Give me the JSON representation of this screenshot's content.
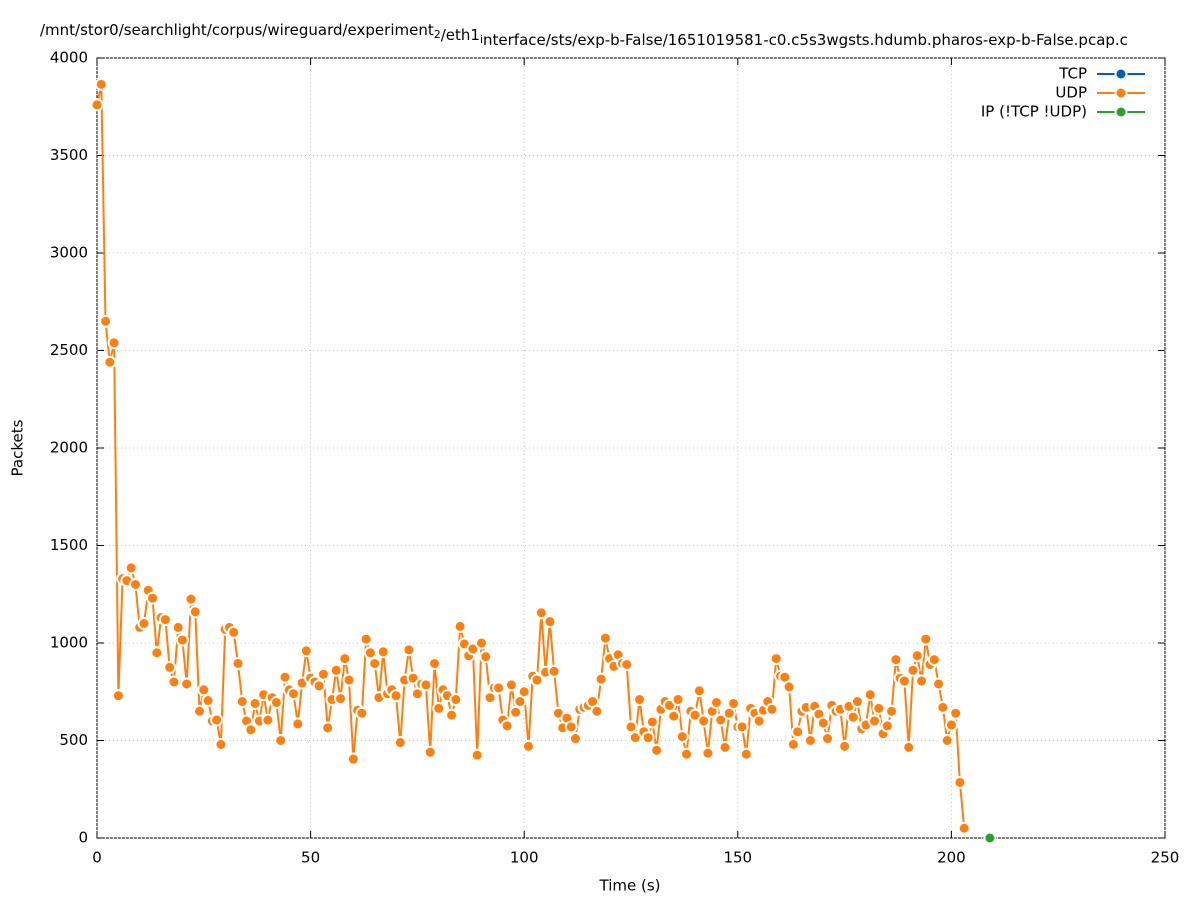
{
  "chart_data": {
    "type": "line",
    "title": "/mnt/stor0/searchlight/corpus/wireguard/experiment_2/eth1_interface/sts/exp-b-False/1651019581-c0.c5s3wgsts.hdumb.pharos-exp-b-False.pcap.c",
    "xlabel": "Time (s)",
    "ylabel": "Packets",
    "xlim": [
      0,
      250
    ],
    "xticks": [
      0,
      50,
      100,
      150,
      200,
      250
    ],
    "ylim": [
      0,
      4000
    ],
    "yticks": [
      0,
      500,
      1000,
      1500,
      2000,
      2500,
      3000,
      3500,
      4000
    ],
    "grid": true,
    "legend": "top-right",
    "series": [
      {
        "name": "TCP",
        "color": "#0060ad",
        "x": [],
        "values": []
      },
      {
        "name": "UDP",
        "color": "#ff7f0e",
        "x": [
          0,
          1,
          2,
          3,
          4,
          5,
          6,
          7,
          8,
          9,
          10,
          11,
          12,
          13,
          14,
          15,
          16,
          17,
          18,
          19,
          20,
          21,
          22,
          23,
          24,
          25,
          26,
          27,
          28,
          29,
          30,
          31,
          32,
          33,
          34,
          35,
          36,
          37,
          38,
          39,
          40,
          41,
          42,
          43,
          44,
          45,
          46,
          47,
          48,
          49,
          50,
          51,
          52,
          53,
          54,
          55,
          56,
          57,
          58,
          59,
          60,
          61,
          62,
          63,
          64,
          65,
          66,
          67,
          68,
          69,
          70,
          71,
          72,
          73,
          74,
          75,
          76,
          77,
          78,
          79,
          80,
          81,
          82,
          83,
          84,
          85,
          86,
          87,
          88,
          89,
          90,
          91,
          92,
          93,
          94,
          95,
          96,
          97,
          98,
          99,
          100,
          101,
          102,
          103,
          104,
          105,
          106,
          107,
          108,
          109,
          110,
          111,
          112,
          113,
          114,
          115,
          116,
          117,
          118,
          119,
          120,
          121,
          122,
          123,
          124,
          125,
          126,
          127,
          128,
          129,
          130,
          131,
          132,
          133,
          134,
          135,
          136,
          137,
          138,
          139,
          140,
          141,
          142,
          143,
          144,
          145,
          146,
          147,
          148,
          149,
          150,
          151,
          152,
          153,
          154,
          155,
          156,
          157,
          158,
          159,
          160,
          161,
          162,
          163,
          164,
          165,
          166,
          167,
          168,
          169,
          170,
          171,
          172,
          173,
          174,
          175,
          176,
          177,
          178,
          179,
          180,
          181,
          182,
          183,
          184,
          185,
          186,
          187,
          188,
          189,
          190,
          191,
          192,
          193,
          194,
          195,
          196,
          197,
          198,
          199,
          200,
          201,
          202,
          203
        ],
        "values": [
          3760,
          3865,
          2650,
          2440,
          2540,
          730,
          1330,
          1320,
          1385,
          1300,
          1080,
          1100,
          1270,
          1230,
          950,
          1130,
          1120,
          875,
          800,
          1080,
          1015,
          790,
          1225,
          1160,
          650,
          760,
          705,
          600,
          605,
          480,
          1070,
          1080,
          1055,
          895,
          700,
          600,
          555,
          690,
          600,
          735,
          605,
          720,
          695,
          500,
          825,
          760,
          740,
          585,
          795,
          960,
          820,
          800,
          780,
          840,
          565,
          710,
          860,
          715,
          920,
          810,
          405,
          655,
          640,
          1020,
          950,
          895,
          720,
          955,
          740,
          760,
          730,
          490,
          810,
          965,
          820,
          740,
          790,
          785,
          440,
          895,
          665,
          760,
          730,
          630,
          710,
          1085,
          995,
          935,
          970,
          425,
          1000,
          930,
          720,
          770,
          770,
          605,
          575,
          785,
          645,
          700,
          750,
          470,
          830,
          810,
          1155,
          850,
          1110,
          855,
          640,
          565,
          615,
          570,
          510,
          660,
          670,
          680,
          700,
          650,
          815,
          1025,
          920,
          880,
          940,
          895,
          890,
          570,
          515,
          710,
          545,
          515,
          595,
          450,
          660,
          700,
          680,
          625,
          710,
          520,
          430,
          650,
          630,
          755,
          600,
          435,
          650,
          695,
          605,
          465,
          640,
          690,
          570,
          570,
          430,
          665,
          640,
          600,
          655,
          700,
          660,
          920,
          830,
          825,
          775,
          480,
          545,
          650,
          670,
          500,
          675,
          635,
          590,
          510,
          680,
          650,
          660,
          470,
          675,
          620,
          700,
          560,
          580,
          735,
          600,
          665,
          535,
          575,
          650,
          915,
          820,
          805,
          465,
          860,
          935,
          805,
          1020,
          890,
          915,
          790,
          670,
          500,
          580,
          640,
          285,
          50
        ]
      },
      {
        "name": "IP (!TCP  !UDP)",
        "color": "#2ca02c",
        "x": [
          209
        ],
        "values": [
          0
        ]
      }
    ]
  }
}
